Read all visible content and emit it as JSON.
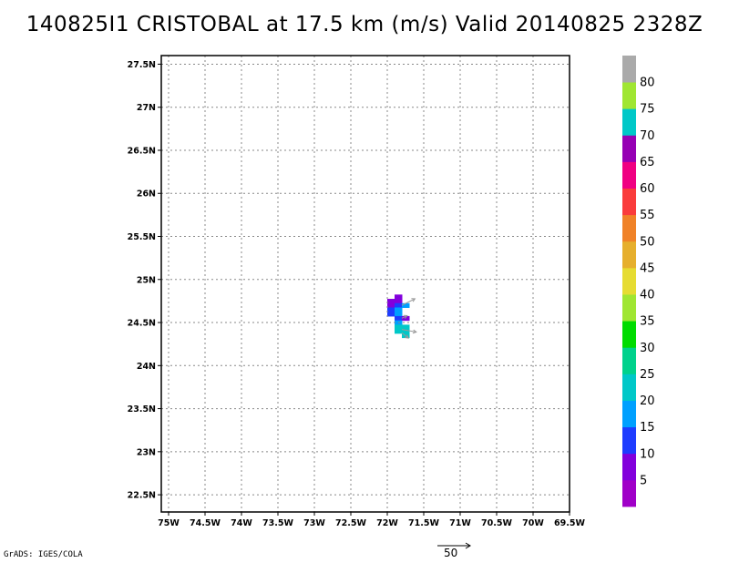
{
  "header": {
    "title": "140825I1 CRISTOBAL at 17.5 km (m/s) Valid 20140825 2328Z"
  },
  "footer": {
    "credit": "GrADS: IGES/COLA",
    "vector_scale_label": "50"
  },
  "chart_data": {
    "type": "heatmap",
    "title": "140825I1 CRISTOBAL at 17.5 km (m/s) Valid 20140825 2328Z",
    "xlabel": "",
    "ylabel": "",
    "xlim": [
      -75.1,
      -69.5
    ],
    "ylim": [
      22.3,
      27.6
    ],
    "grid": true,
    "x_ticks": [
      {
        "value": -75,
        "label": "75W"
      },
      {
        "value": -74.5,
        "label": "74.5W"
      },
      {
        "value": -74,
        "label": "74W"
      },
      {
        "value": -73.5,
        "label": "73.5W"
      },
      {
        "value": -73,
        "label": "73W"
      },
      {
        "value": -72.5,
        "label": "72.5W"
      },
      {
        "value": -72,
        "label": "72W"
      },
      {
        "value": -71.5,
        "label": "71.5W"
      },
      {
        "value": -71,
        "label": "71W"
      },
      {
        "value": -70.5,
        "label": "70.5W"
      },
      {
        "value": -70,
        "label": "70W"
      },
      {
        "value": -69.5,
        "label": "69.5W"
      }
    ],
    "y_ticks": [
      {
        "value": 22.5,
        "label": "22.5N"
      },
      {
        "value": 23,
        "label": "23N"
      },
      {
        "value": 23.5,
        "label": "23.5N"
      },
      {
        "value": 24,
        "label": "24N"
      },
      {
        "value": 24.5,
        "label": "24.5N"
      },
      {
        "value": 25,
        "label": "25N"
      },
      {
        "value": 25.5,
        "label": "25.5N"
      },
      {
        "value": 26,
        "label": "26N"
      },
      {
        "value": 26.5,
        "label": "26.5N"
      },
      {
        "value": 27,
        "label": "27N"
      },
      {
        "value": 27.5,
        "label": "27.5N"
      }
    ],
    "colorbar": {
      "placement": "right",
      "labels": [
        "5",
        "10",
        "15",
        "20",
        "25",
        "30",
        "35",
        "40",
        "45",
        "50",
        "55",
        "60",
        "65",
        "70",
        "75",
        "80"
      ],
      "colors": [
        "#a000c8",
        "#8200dc",
        "#1e3cff",
        "#00a0ff",
        "#00c8c8",
        "#00d28c",
        "#00dc00",
        "#a0e632",
        "#e6dc32",
        "#e6af2d",
        "#f08228",
        "#fa3c3c",
        "#f00082",
        "#9600b4",
        "#00c8c8",
        "#a0e632",
        "#aaaaaa"
      ]
    },
    "cells": [
      {
        "lon": -71.95,
        "lat": 24.75,
        "value": 8
      },
      {
        "lon": -71.85,
        "lat": 24.75,
        "value": 8
      },
      {
        "lon": -71.85,
        "lat": 24.8,
        "value": 8
      },
      {
        "lon": -71.95,
        "lat": 24.7,
        "value": 8
      },
      {
        "lon": -71.85,
        "lat": 24.7,
        "value": 12
      },
      {
        "lon": -71.75,
        "lat": 24.7,
        "value": 18
      },
      {
        "lon": -71.95,
        "lat": 24.65,
        "value": 12
      },
      {
        "lon": -71.85,
        "lat": 24.65,
        "value": 17
      },
      {
        "lon": -71.95,
        "lat": 24.6,
        "value": 12
      },
      {
        "lon": -71.85,
        "lat": 24.6,
        "value": 17
      },
      {
        "lon": -71.85,
        "lat": 24.55,
        "value": 12
      },
      {
        "lon": -71.75,
        "lat": 24.55,
        "value": 8
      },
      {
        "lon": -71.85,
        "lat": 24.5,
        "value": 17
      },
      {
        "lon": -71.85,
        "lat": 24.45,
        "value": 22
      },
      {
        "lon": -71.75,
        "lat": 24.45,
        "value": 22
      },
      {
        "lon": -71.85,
        "lat": 24.4,
        "value": 22
      },
      {
        "lon": -71.75,
        "lat": 24.4,
        "value": 22
      },
      {
        "lon": -71.75,
        "lat": 24.35,
        "value": 22
      }
    ],
    "vectors": [
      {
        "lon": -71.8,
        "lat": 24.7,
        "u": 20,
        "v": 10
      },
      {
        "lon": -71.8,
        "lat": 24.55,
        "u": 8,
        "v": 4
      },
      {
        "lon": -71.8,
        "lat": 24.42,
        "u": 22,
        "v": -4
      },
      {
        "lon": -71.8,
        "lat": 24.38,
        "u": 10,
        "v": -8
      }
    ],
    "vector_scale": 50
  }
}
